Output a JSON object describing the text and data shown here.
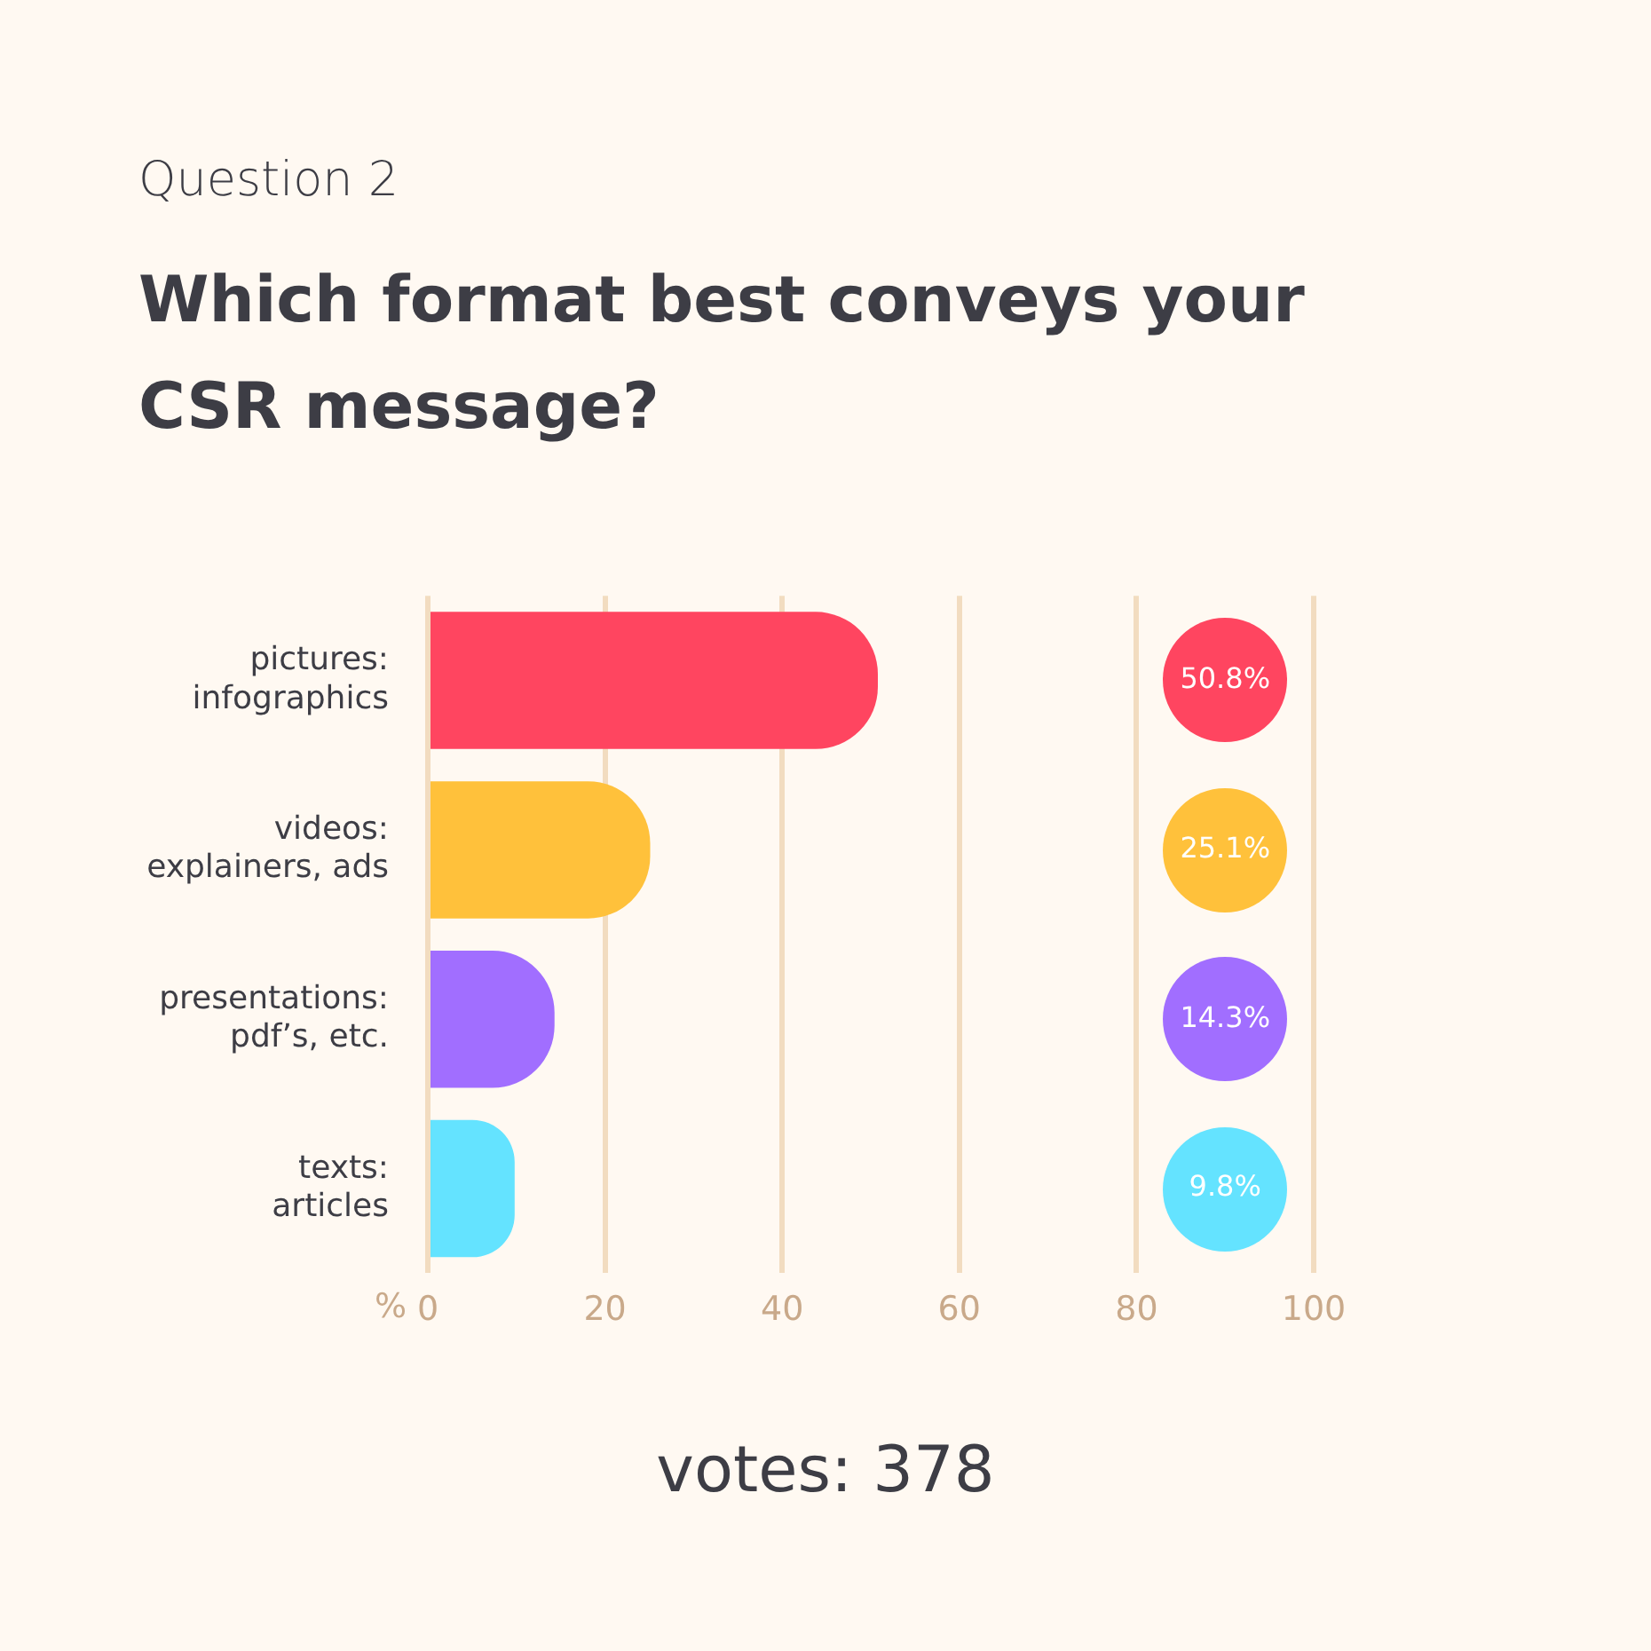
{
  "chart_data": {
    "type": "bar",
    "orientation": "horizontal",
    "subtitle": "Question 2",
    "title": "Which format best conveys your CSR message?",
    "categories": [
      "pictures: infographics",
      "videos: explainers, ads",
      "presentations: pdf’s, etc.",
      "texts: articles"
    ],
    "values": [
      50.8,
      25.1,
      14.3,
      9.8
    ],
    "colors": [
      "#ff4560",
      "#ffc13b",
      "#a16eff",
      "#64e3ff"
    ],
    "value_labels": [
      "50.8%",
      "25.1%",
      "14.3%",
      "9.8%"
    ],
    "xlabel": "%",
    "xlim": [
      0,
      100
    ],
    "xticks": [
      0,
      20,
      40,
      60,
      80,
      100
    ],
    "grid": "x",
    "legend": false,
    "annotations": [
      "votes: 378"
    ]
  }
}
